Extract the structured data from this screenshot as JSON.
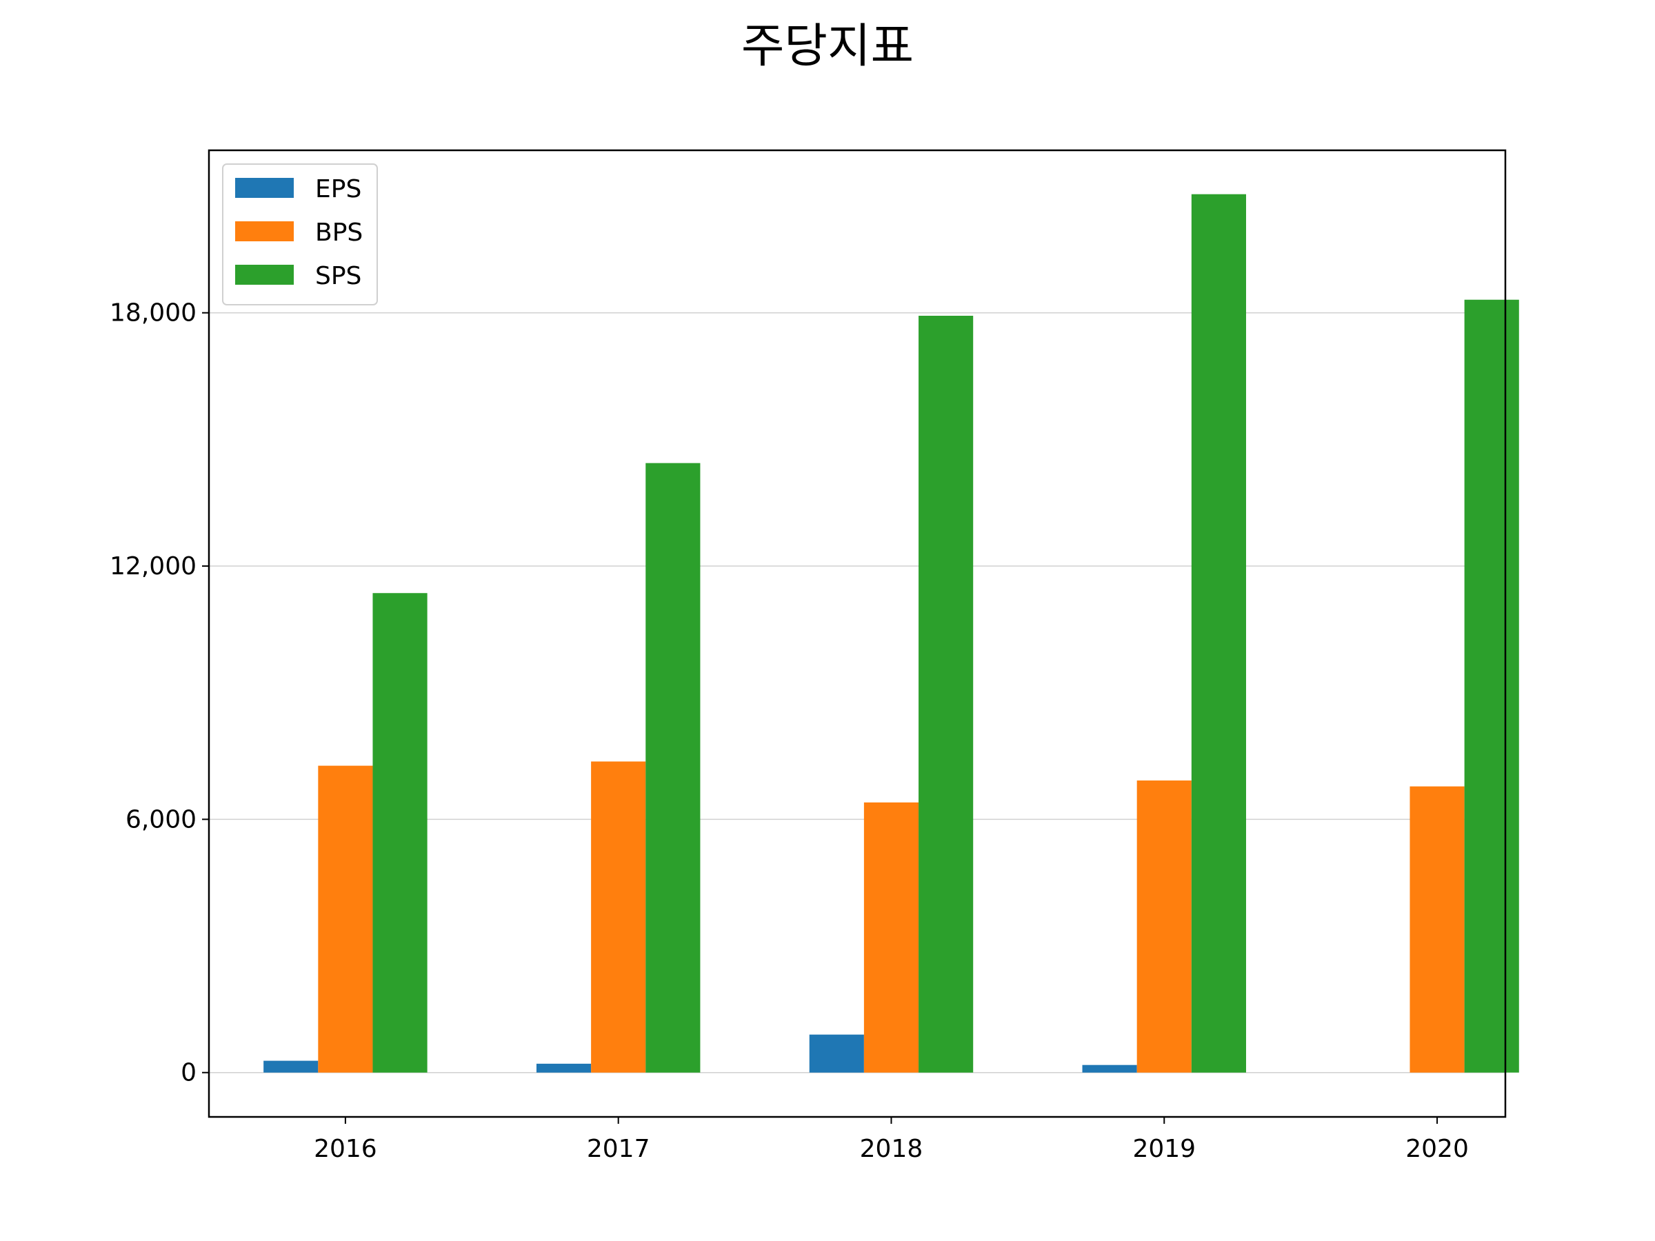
{
  "chart_data": {
    "type": "bar",
    "title": "주당지표",
    "xlabel": "",
    "ylabel": "",
    "categories": [
      "2016",
      "2017",
      "2018",
      "2019",
      "2020"
    ],
    "series": [
      {
        "name": "EPS",
        "color": "#1f77b4",
        "values": [
          280,
          210,
          900,
          180,
          0
        ]
      },
      {
        "name": "BPS",
        "color": "#ff7f0e",
        "values": [
          7270,
          7370,
          6400,
          6920,
          6780
        ]
      },
      {
        "name": "SPS",
        "color": "#2ca02c",
        "values": [
          11360,
          14440,
          17930,
          20810,
          18310
        ]
      }
    ],
    "ylim": [
      -1050,
      21850
    ],
    "yticks": [
      0,
      6000,
      12000,
      18000
    ],
    "ytick_labels": [
      "0",
      "6,000",
      "12,000",
      "18,000"
    ],
    "grid": "y",
    "legend_position": "top-left"
  }
}
